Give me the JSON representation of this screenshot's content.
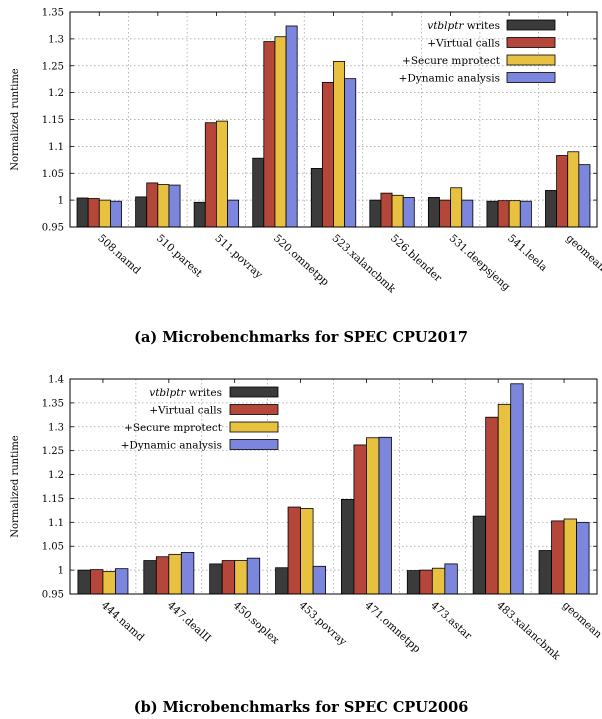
{
  "colors": {
    "vtblptr_writes": "#3b3b3b",
    "virtual_calls": "#b5473a",
    "secure_mprotect": "#e9c141",
    "dynamic_analysis": "#7b86dc"
  },
  "chart_data": [
    {
      "type": "bar",
      "caption": "(a) Microbenchmarks for SPEC CPU2017",
      "ylabel": "Normalized runtime",
      "xlabel": "",
      "ylim": [
        0.95,
        1.35
      ],
      "yticks": [
        "0.95",
        "1",
        "1.05",
        "1.1",
        "1.15",
        "1.2",
        "1.25",
        "1.3",
        "1.35"
      ],
      "grid": true,
      "legend_position": "top-right",
      "categories": [
        "508.namd",
        "510.parest",
        "511.povray",
        "520.omnetpp",
        "523.xalancbmk",
        "526.blender",
        "531.deepsjeng",
        "541.leela",
        "geomean"
      ],
      "series": [
        {
          "name": "vtblptr writes",
          "color_key": "vtblptr_writes",
          "values": [
            1.004,
            1.006,
            0.996,
            1.078,
            1.059,
            1.0,
            1.005,
            0.998,
            1.018
          ]
        },
        {
          "name": "+Virtual calls",
          "color_key": "virtual_calls",
          "values": [
            1.003,
            1.032,
            1.144,
            1.295,
            1.219,
            1.013,
            1.0,
            0.999,
            1.083
          ]
        },
        {
          "name": "+Secure mprotect",
          "color_key": "secure_mprotect",
          "values": [
            1.0,
            1.029,
            1.147,
            1.304,
            1.258,
            1.009,
            1.023,
            0.999,
            1.09
          ]
        },
        {
          "name": "+Dynamic analysis",
          "color_key": "dynamic_analysis",
          "values": [
            0.998,
            1.028,
            1.0,
            1.324,
            1.226,
            1.005,
            1.0,
            0.998,
            1.066
          ]
        }
      ]
    },
    {
      "type": "bar",
      "caption": "(b) Microbenchmarks for SPEC CPU2006",
      "ylabel": "Normalized runtime",
      "xlabel": "",
      "ylim": [
        0.95,
        1.4
      ],
      "yticks": [
        "0.95",
        "1",
        "1.05",
        "1.1",
        "1.15",
        "1.2",
        "1.25",
        "1.3",
        "1.35",
        "1.4"
      ],
      "grid": true,
      "legend_position": "top-left",
      "categories": [
        "444.namd",
        "447.dealII",
        "450.soplex",
        "453.povray",
        "471.omnetpp",
        "473.astar",
        "483.xalancbmk",
        "geomean"
      ],
      "series": [
        {
          "name": "vtblptr writes",
          "color_key": "vtblptr_writes",
          "values": [
            1.0,
            1.02,
            1.013,
            1.005,
            1.148,
            0.999,
            1.113,
            1.041
          ]
        },
        {
          "name": "+Virtual calls",
          "color_key": "virtual_calls",
          "values": [
            1.001,
            1.028,
            1.02,
            1.132,
            1.262,
            1.0,
            1.32,
            1.103
          ]
        },
        {
          "name": "+Secure mprotect",
          "color_key": "secure_mprotect",
          "values": [
            0.997,
            1.033,
            1.02,
            1.129,
            1.277,
            1.004,
            1.347,
            1.107
          ]
        },
        {
          "name": "+Dynamic analysis",
          "color_key": "dynamic_analysis",
          "values": [
            1.003,
            1.037,
            1.025,
            1.008,
            1.278,
            1.013,
            1.39,
            1.1
          ]
        }
      ]
    }
  ]
}
